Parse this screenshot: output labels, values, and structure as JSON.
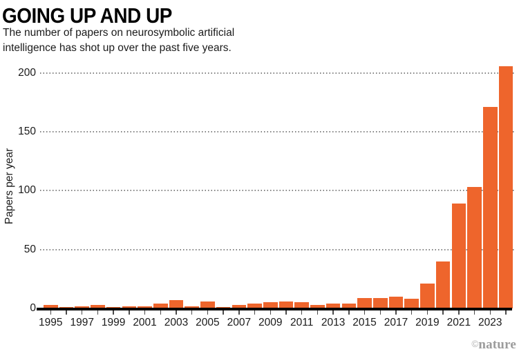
{
  "colors": {
    "bar": "#ee652c",
    "axis": "#000000",
    "grid_dot": "#818181",
    "text": "#1a1a1a",
    "credit": "#9c9c9c"
  },
  "chart_data": {
    "type": "bar",
    "title": "GOING UP AND UP",
    "subtitle": "The number of papers on neurosymbolic artificial intelligence has shot up over the past five years.",
    "subtitle_lines": [
      "The number of papers on neurosymbolic artificial",
      "intelligence has shot up over the past five years."
    ],
    "categories": [
      1995,
      1996,
      1997,
      1998,
      1999,
      2000,
      2001,
      2002,
      2003,
      2004,
      2005,
      2006,
      2007,
      2008,
      2009,
      2010,
      2011,
      2012,
      2013,
      2014,
      2015,
      2016,
      2017,
      2018,
      2019,
      2020,
      2021,
      2022,
      2023,
      2024
    ],
    "values": [
      3,
      1,
      2,
      3,
      1,
      2,
      2,
      4,
      7,
      2,
      6,
      1,
      3,
      4,
      5,
      6,
      5,
      3,
      4,
      4,
      9,
      9,
      10,
      8,
      21,
      40,
      89,
      103,
      171,
      206
    ],
    "xlabel": "",
    "ylabel": "Papers per year",
    "ylim": [
      0,
      210
    ],
    "yticks": [
      0,
      50,
      100,
      150,
      200
    ],
    "x_tick_labels": [
      "1995",
      "1997",
      "1999",
      "2001",
      "2003",
      "2005",
      "2007",
      "2009",
      "2011",
      "2013",
      "2015",
      "2017",
      "2019",
      "2021",
      "2023"
    ],
    "grid": "horizontal dotted",
    "legend": "none",
    "bar_color": "#ee652c"
  },
  "footer": {
    "credit_symbol": "©",
    "credit_wordmark": "nature"
  }
}
